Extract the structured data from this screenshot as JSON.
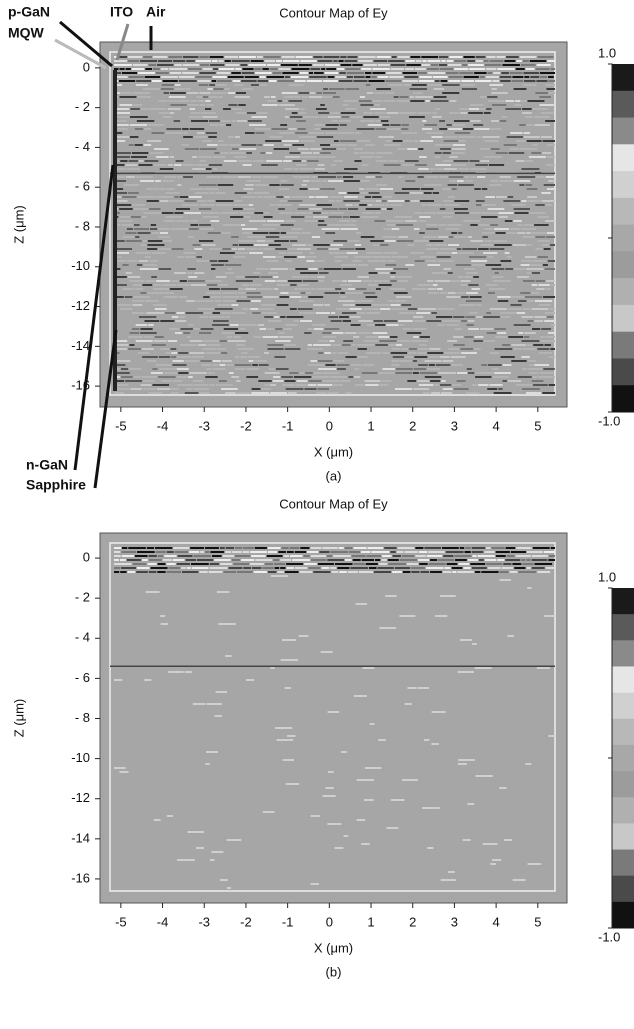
{
  "chart_data": [
    {
      "type": "contour",
      "title": "Contour Map of Ey",
      "xlabel": "X (μm)",
      "ylabel": "Z (μm)",
      "xlim": [
        -5.5,
        5.7
      ],
      "ylim": [
        -17.05,
        1.3
      ],
      "xticks": [
        -5,
        -4,
        -3,
        -2,
        -1,
        0,
        1,
        2,
        3,
        4,
        5
      ],
      "yticks": [
        0,
        {
          "value": -2,
          "label": "- 2"
        },
        {
          "value": -4,
          "label": "- 4"
        },
        {
          "value": -6,
          "label": "- 6"
        },
        {
          "value": -8,
          "label": "- 8"
        },
        -10,
        -12,
        -14,
        -16
      ],
      "colorbar": {
        "lim": [
          -1,
          1
        ],
        "ticks": [
          {
            "value": 1,
            "label": "1.0"
          },
          {
            "value": -1,
            "label": "-1.0"
          }
        ],
        "colors": [
          "#1a1a1a",
          "#5a5a5a",
          "#8a8a8a",
          "#e6e6e6",
          "#d0d0d0",
          "#b8b8b8",
          "#a8a8a8",
          "#9c9c9c",
          "#b0b0b0",
          "#c8c8c8",
          "#7a7a7a",
          "#4a4a4a",
          "#111111"
        ]
      },
      "annotations": [
        "p-GaN",
        "MQW",
        "ITO",
        "Air",
        "n-GaN",
        "Sapphire"
      ],
      "caption": "(a)"
    },
    {
      "type": "contour",
      "title": "Contour Map of Ey",
      "xlabel": "X (μm)",
      "ylabel": "Z (μm)",
      "xlim": [
        -5.5,
        5.7
      ],
      "ylim": [
        -17.2,
        1.25
      ],
      "xticks": [
        -5,
        -4,
        -3,
        -2,
        -1,
        0,
        1,
        2,
        3,
        4,
        5
      ],
      "yticks": [
        0,
        {
          "value": -2,
          "label": "- 2"
        },
        {
          "value": -4,
          "label": "- 4"
        },
        {
          "value": -6,
          "label": "- 6"
        },
        {
          "value": -8,
          "label": "- 8"
        },
        -10,
        -12,
        -14,
        -16
      ],
      "colorbar": {
        "lim": [
          -1,
          1
        ],
        "ticks": [
          {
            "value": 1,
            "label": "1.0"
          },
          {
            "value": -1,
            "label": "-1.0"
          }
        ],
        "colors": [
          "#1a1a1a",
          "#5a5a5a",
          "#8a8a8a",
          "#e6e6e6",
          "#d0d0d0",
          "#b8b8b8",
          "#a8a8a8",
          "#9c9c9c",
          "#b0b0b0",
          "#c8c8c8",
          "#7a7a7a",
          "#4a4a4a",
          "#111111"
        ]
      },
      "caption": "(b)"
    }
  ]
}
